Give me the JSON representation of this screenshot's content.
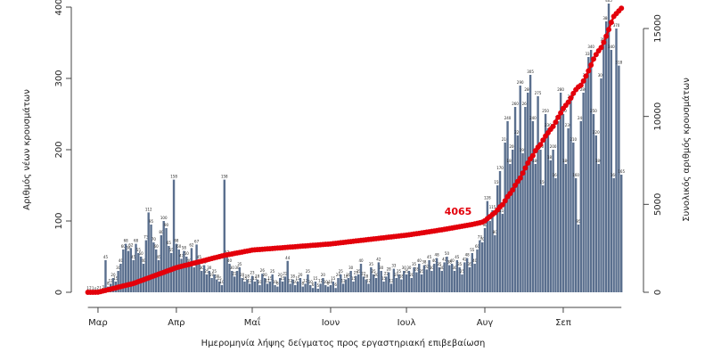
{
  "chart_data": {
    "type": "bar",
    "y_label": "Αριθμός νέων κρουσμάτων",
    "y2_label": "Συνολικός αριθμός κρουσμάτων",
    "x_label": "Ημερομηνία λήψης δείγματος προς εργαστηριακή επιβεβαίωση",
    "categories": [
      null,
      null,
      null,
      null,
      "Μαρ",
      null,
      null,
      null,
      null,
      null,
      null,
      null,
      null,
      null,
      null,
      null,
      null,
      null,
      null,
      null,
      null,
      null,
      null,
      null,
      null,
      null,
      null,
      null,
      null,
      null,
      null,
      null,
      null,
      null,
      null,
      "Απρ",
      null,
      null,
      null,
      null,
      null,
      null,
      null,
      null,
      null,
      null,
      null,
      null,
      null,
      null,
      null,
      null,
      null,
      null,
      null,
      null,
      null,
      null,
      null,
      null,
      null,
      null,
      null,
      null,
      null,
      "Μαΐ",
      null,
      null,
      null,
      null,
      null,
      null,
      null,
      null,
      null,
      null,
      null,
      null,
      null,
      null,
      null,
      null,
      null,
      null,
      null,
      null,
      null,
      null,
      null,
      null,
      null,
      null,
      null,
      null,
      null,
      null,
      "Ιουν",
      null,
      null,
      null,
      null,
      null,
      null,
      null,
      null,
      null,
      null,
      null,
      null,
      null,
      null,
      null,
      null,
      null,
      null,
      null,
      null,
      null,
      null,
      null,
      null,
      null,
      null,
      null,
      null,
      null,
      "Ιουλ",
      null,
      null,
      null,
      null,
      null,
      null,
      null,
      null,
      null,
      null,
      null,
      null,
      null,
      null,
      null,
      null,
      null,
      null,
      null,
      null,
      null,
      null,
      null,
      null,
      null,
      null,
      null,
      null,
      null,
      null,
      "Αυγ",
      null,
      null,
      null,
      null,
      null,
      null,
      null,
      null,
      null,
      null,
      null,
      null,
      null,
      null,
      null,
      null,
      null,
      null,
      null,
      null,
      null,
      null,
      null,
      null,
      null,
      null,
      null,
      null,
      null,
      null,
      "Σεπ",
      null,
      null,
      null,
      null,
      null,
      null,
      null,
      null,
      null,
      null,
      null,
      null,
      null,
      null,
      null,
      null,
      null,
      null,
      null,
      null,
      null,
      null,
      null
    ],
    "series": [
      {
        "color": "#5a6f8e",
        "values": [
          1,
          2,
          1,
          0,
          2,
          1,
          3,
          45,
          8,
          12,
          20,
          15,
          30,
          40,
          60,
          68,
          58,
          62,
          45,
          68,
          55,
          50,
          40,
          73,
          112,
          95,
          70,
          60,
          45,
          80,
          100,
          90,
          65,
          55,
          158,
          68,
          60,
          47,
          58,
          50,
          40,
          62,
          35,
          67,
          45,
          30,
          38,
          25,
          30,
          20,
          25,
          18,
          15,
          10,
          158,
          52,
          40,
          30,
          22,
          30,
          35,
          20,
          15,
          18,
          12,
          23,
          15,
          18,
          10,
          26,
          20,
          12,
          15,
          25,
          10,
          8,
          20,
          15,
          22,
          44,
          12,
          18,
          10,
          15,
          20,
          8,
          12,
          25,
          10,
          6,
          15,
          5,
          12,
          20,
          10,
          8,
          10,
          15,
          6,
          20,
          25,
          12,
          18,
          20,
          30,
          15,
          23,
          25,
          40,
          22,
          18,
          12,
          35,
          25,
          20,
          42,
          30,
          15,
          22,
          28,
          12,
          33,
          20,
          25,
          18,
          30,
          25,
          30,
          20,
          35,
          28,
          40,
          25,
          38,
          32,
          45,
          30,
          40,
          48,
          35,
          30,
          42,
          50,
          38,
          40,
          30,
          45,
          35,
          25,
          42,
          48,
          35,
          55,
          40,
          60,
          73,
          70,
          90,
          128,
          100,
          115,
          80,
          150,
          170,
          110,
          210,
          240,
          180,
          200,
          260,
          220,
          290,
          195,
          260,
          280,
          305,
          240,
          180,
          275,
          200,
          150,
          250,
          230,
          185,
          200,
          160,
          240,
          280,
          250,
          180,
          230,
          270,
          210,
          160,
          95,
          240,
          280,
          300,
          330,
          340,
          250,
          220,
          180,
          300,
          350,
          380,
          405,
          340,
          160,
          370,
          318,
          165
        ]
      },
      {
        "type": "line",
        "axis": "y2",
        "color": "#e3000b",
        "values": [
          0,
          1,
          2,
          3,
          5,
          40,
          75,
          110,
          145,
          180,
          215,
          250,
          290,
          325,
          360,
          395,
          430,
          465,
          500,
          553,
          606,
          659,
          712,
          765,
          818,
          871,
          924,
          977,
          1030,
          1083,
          1136,
          1189,
          1242,
          1295,
          1348,
          1400,
          1437,
          1474,
          1511,
          1548,
          1585,
          1622,
          1659,
          1696,
          1733,
          1770,
          1807,
          1844,
          1881,
          1918,
          1955,
          1992,
          2029,
          2066,
          2100,
          2127,
          2154,
          2181,
          2208,
          2235,
          2262,
          2289,
          2316,
          2343,
          2370,
          2400,
          2411,
          2423,
          2434,
          2445,
          2456,
          2468,
          2479,
          2490,
          2502,
          2513,
          2524,
          2535,
          2547,
          2558,
          2569,
          2581,
          2592,
          2603,
          2614,
          2626,
          2637,
          2648,
          2660,
          2671,
          2682,
          2694,
          2705,
          2716,
          2727,
          2739,
          2750,
          2767,
          2783,
          2800,
          2817,
          2833,
          2850,
          2867,
          2883,
          2900,
          2917,
          2933,
          2950,
          2967,
          2983,
          3000,
          3017,
          3033,
          3050,
          3067,
          3083,
          3100,
          3117,
          3133,
          3150,
          3167,
          3183,
          3200,
          3217,
          3233,
          3250,
          3270,
          3290,
          3310,
          3330,
          3352,
          3374,
          3396,
          3418,
          3440,
          3463,
          3486,
          3509,
          3532,
          3556,
          3580,
          3604,
          3628,
          3653,
          3678,
          3703,
          3728,
          3754,
          3780,
          3806,
          3833,
          3860,
          3888,
          3918,
          3950,
          3990,
          4065,
          4190,
          4300,
          4420,
          4520,
          4680,
          4860,
          4980,
          5200,
          5440,
          5620,
          5820,
          6080,
          6300,
          6500,
          6780,
          7070,
          7350,
          7590,
          7770,
          8050,
          8250,
          8400,
          8650,
          8880,
          9070,
          9270,
          9430,
          9670,
          9950,
          10200,
          10450,
          10630,
          10810,
          11040,
          11310,
          11520,
          11680,
          11775,
          12015,
          12295,
          12595,
          12925,
          13265,
          13515,
          13735,
          13915,
          14215,
          14565,
          14945,
          15350,
          15690,
          15850,
          16000,
          16150
        ]
      }
    ],
    "annotations": [
      {
        "text": "4065",
        "index": 157
      }
    ],
    "ylim": [
      0,
      400
    ],
    "yticks": [
      0,
      100,
      200,
      300,
      400
    ],
    "y2lim": [
      0,
      16216
    ],
    "y2ticks": [
      0,
      5000,
      10000,
      15000
    ]
  }
}
